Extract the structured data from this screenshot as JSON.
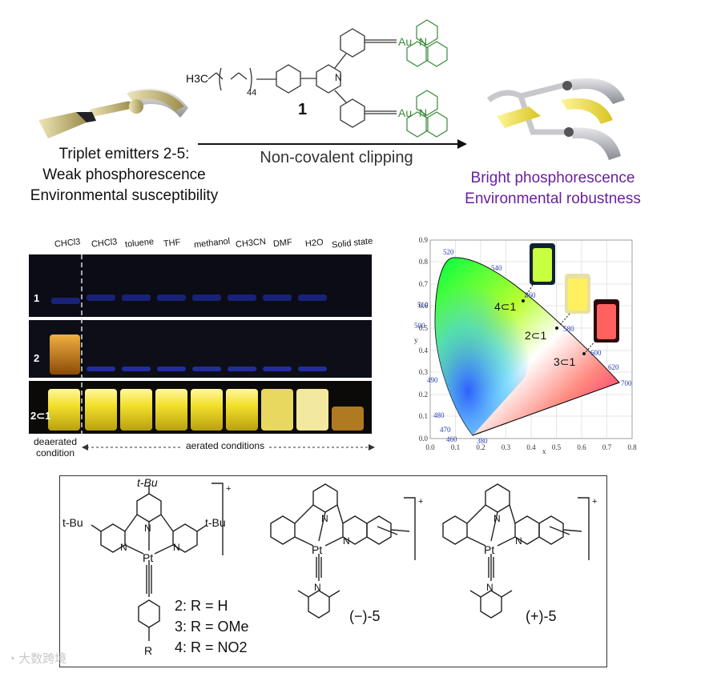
{
  "top": {
    "left_title_line1": "Triplet emitters 2-5:",
    "left_title_line2": "Weak phosphorescence",
    "left_title_line3": "Environmental susceptibility",
    "arrow_label": "Non-covalent clipping",
    "right_line1": "Bright phosphorescence",
    "right_line2": "Environmental robustness",
    "compound_number": "1",
    "peg_label": "H3C",
    "peg_repeat": "44",
    "au_label": "Au",
    "n_label": "N"
  },
  "photo": {
    "columns": [
      "CHCl3",
      "CHCl3",
      "toluene",
      "THF",
      "methanol",
      "CH3CN",
      "DMF",
      "H2O",
      "Solid state"
    ],
    "rows": [
      "1",
      "2",
      "2⊂1"
    ],
    "left_caption_line1": "deaerated",
    "left_caption_line2": "condition",
    "right_caption": "aerated conditions"
  },
  "cie": {
    "x_label": "x",
    "y_label": "y",
    "x_ticks": [
      "0.0",
      "0.1",
      "0.2",
      "0.3",
      "0.4",
      "0.5",
      "0.6",
      "0.7",
      "0.8"
    ],
    "y_ticks": [
      "0.0",
      "0.1",
      "0.2",
      "0.3",
      "0.4",
      "0.5",
      "0.6",
      "0.7",
      "0.8",
      "0.9"
    ],
    "wavelengths": [
      "520",
      "540",
      "560",
      "580",
      "600",
      "620",
      "700",
      "510",
      "500",
      "490",
      "480",
      "470",
      "460",
      "380"
    ],
    "points": [
      {
        "label": "4⊂1"
      },
      {
        "label": "2⊂1"
      },
      {
        "label": "3⊂1"
      }
    ]
  },
  "structures": {
    "tbu": "t-Bu",
    "pt": "Pt",
    "n": "N",
    "plus": "+",
    "r": "R",
    "legend": [
      "2: R = H",
      "3: R = OMe",
      "4: R = NO2"
    ],
    "enant_minus": "(−)-5",
    "enant_plus": "(+)-5"
  },
  "watermark": "大数跨境",
  "colors": {
    "purple": "#6a1fa0",
    "gold": "#c8b46a",
    "yellow": "#f2e23a",
    "blue_glow": "#2a3bd8"
  }
}
